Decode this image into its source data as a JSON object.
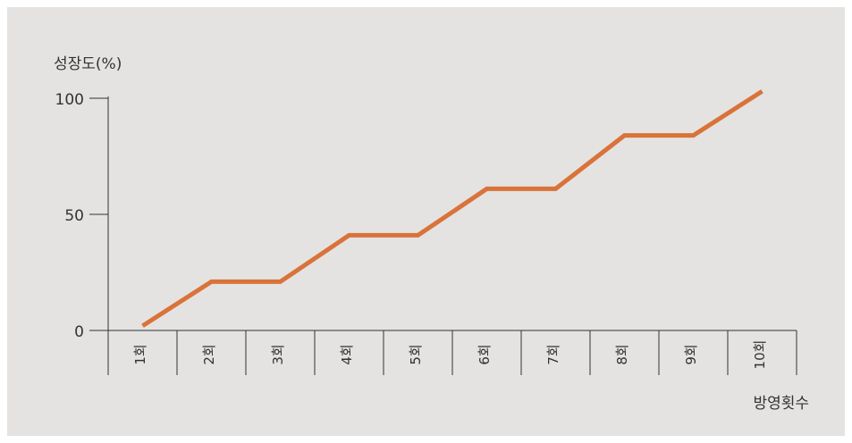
{
  "chart_data": {
    "type": "line",
    "y_label": "성장도(%)",
    "x_label": "방영횟수",
    "categories": [
      "1회",
      "2회",
      "3회",
      "4회",
      "5회",
      "6회",
      "7회",
      "8회",
      "9회",
      "10회"
    ],
    "series": [
      {
        "name": "성장도",
        "color": "#d9733a",
        "values": [
          2,
          21,
          21,
          41,
          41,
          61,
          61,
          84,
          84,
          103
        ]
      }
    ],
    "ylim": [
      0,
      100
    ],
    "yticks": [
      0,
      50,
      100
    ],
    "grid": false
  }
}
